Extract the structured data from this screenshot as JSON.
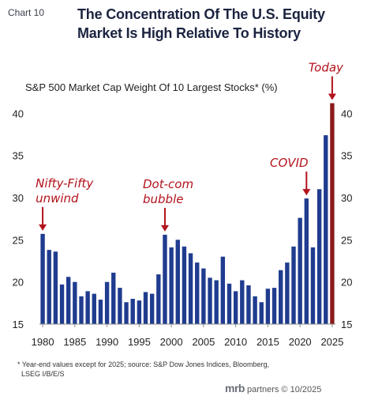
{
  "header": {
    "chart_number": "Chart 10",
    "title": "The Concentration Of The U.S. Equity Market Is High Relative To History"
  },
  "chart_data": {
    "type": "bar",
    "subtitle": "S&P 500 Market Cap Weight Of 10 Largest Stocks* (%)",
    "x": [
      1980,
      1981,
      1982,
      1983,
      1984,
      1985,
      1986,
      1987,
      1988,
      1989,
      1990,
      1991,
      1992,
      1993,
      1994,
      1995,
      1996,
      1997,
      1998,
      1999,
      2000,
      2001,
      2002,
      2003,
      2004,
      2005,
      2006,
      2007,
      2008,
      2009,
      2010,
      2011,
      2012,
      2013,
      2014,
      2015,
      2016,
      2017,
      2018,
      2019,
      2020,
      2021,
      2022,
      2023,
      2024,
      2025
    ],
    "values": [
      25.7,
      23.8,
      23.6,
      19.7,
      20.6,
      20.0,
      18.3,
      18.9,
      18.6,
      17.9,
      20.0,
      21.1,
      19.3,
      17.6,
      18.0,
      17.8,
      18.8,
      18.6,
      20.9,
      25.6,
      24.1,
      25.0,
      24.2,
      23.4,
      22.3,
      21.6,
      20.5,
      20.2,
      23.0,
      19.8,
      18.9,
      20.2,
      19.6,
      18.3,
      17.6,
      19.2,
      19.3,
      21.4,
      22.3,
      24.2,
      27.6,
      29.9,
      24.1,
      31.0,
      37.4,
      41.2
    ],
    "highlight_index": 45,
    "highlight_color": "#8b1a1a",
    "bar_color": "#1f3c8f",
    "ylim": [
      15,
      42
    ],
    "yticks": [
      15,
      20,
      25,
      30,
      35,
      40
    ],
    "xtick_labels": [
      "1980",
      "1985",
      "1990",
      "1995",
      "2000",
      "2005",
      "2010",
      "2015",
      "2020",
      "2025"
    ],
    "annotations": [
      {
        "lines": [
          "Nifty-Fifty",
          "unwind"
        ],
        "year": 1980
      },
      {
        "lines": [
          "Dot-com",
          "bubble"
        ],
        "year": 1999
      },
      {
        "lines": [
          "COVID"
        ],
        "year": 2021
      },
      {
        "lines": [
          "Today"
        ],
        "year": 2025
      }
    ],
    "annotation_color": "#b3121c"
  },
  "footer": {
    "note_line1": "* Year-end values except for 2025; source: S&P Dow Jones Indices, Bloomberg,",
    "note_line2": "LSEG I/B/E/S",
    "brand_name": "mrb",
    "brand_rest": "partners © 10/2025"
  }
}
